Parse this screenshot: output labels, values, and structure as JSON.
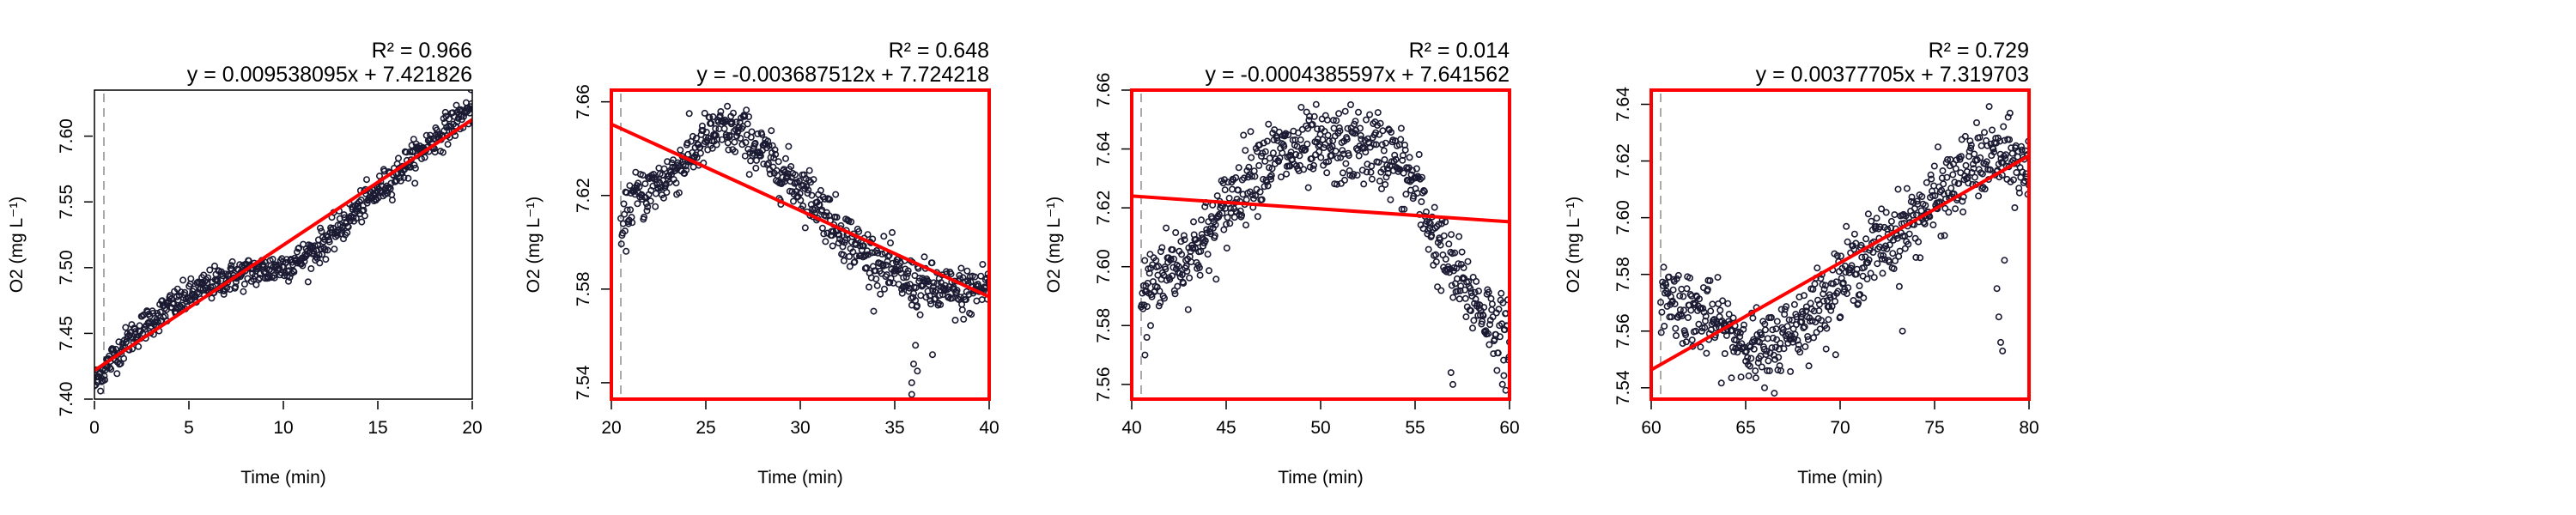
{
  "colors": {
    "point_stroke": "#1a1a33",
    "fit_line": "#ff0000",
    "highlight_border": "#ff0000",
    "plain_border": "#000000",
    "guide_line": "#aaaaaa"
  },
  "chart_data": [
    {
      "type": "scatter",
      "title": "",
      "xlabel": "Time (min)",
      "ylabel": "O2 (mg L⁻¹)",
      "xlim": [
        0,
        20
      ],
      "ylim": [
        7.4,
        7.635
      ],
      "xticks": [
        "0",
        "5",
        "10",
        "15",
        "20"
      ],
      "yticks": [
        "7.40",
        "7.45",
        "7.50",
        "7.55",
        "7.60"
      ],
      "r2_label": "R² = 0.966",
      "equation": "y = 0.009538095x + 7.421826",
      "slope": 0.009538095,
      "intercept": 7.421826,
      "guide_x": 0.5,
      "highlighted": false,
      "trend_points": [
        [
          0,
          7.412
        ],
        [
          1,
          7.432
        ],
        [
          2,
          7.448
        ],
        [
          3,
          7.46
        ],
        [
          4,
          7.47
        ],
        [
          5,
          7.478
        ],
        [
          6,
          7.486
        ],
        [
          7,
          7.492
        ],
        [
          8,
          7.496
        ],
        [
          9,
          7.498
        ],
        [
          10,
          7.501
        ],
        [
          11,
          7.507
        ],
        [
          12,
          7.517
        ],
        [
          13,
          7.53
        ],
        [
          14,
          7.545
        ],
        [
          15,
          7.558
        ],
        [
          16,
          7.572
        ],
        [
          17,
          7.585
        ],
        [
          18,
          7.598
        ],
        [
          19,
          7.61
        ],
        [
          20,
          7.622
        ]
      ],
      "spread": 0.006,
      "spikes": []
    },
    {
      "type": "scatter",
      "title": "",
      "xlabel": "Time (min)",
      "ylabel": "O2 (mg L⁻¹)",
      "xlim": [
        20,
        40
      ],
      "ylim": [
        7.533,
        7.665
      ],
      "xticks": [
        "20",
        "25",
        "30",
        "35",
        "40"
      ],
      "yticks": [
        "7.54",
        "7.58",
        "7.62",
        "7.66"
      ],
      "r2_label": "R² = 0.648",
      "equation": "y = -0.003687512x + 7.724218",
      "slope": -0.003687512,
      "intercept": 7.724218,
      "guide_x": 20.5,
      "highlighted": true,
      "trend_points": [
        [
          20.5,
          7.6
        ],
        [
          21,
          7.618
        ],
        [
          22,
          7.622
        ],
        [
          23,
          7.628
        ],
        [
          24,
          7.636
        ],
        [
          25,
          7.644
        ],
        [
          26,
          7.648
        ],
        [
          27,
          7.646
        ],
        [
          28,
          7.638
        ],
        [
          29,
          7.63
        ],
        [
          30,
          7.624
        ],
        [
          31,
          7.616
        ],
        [
          32,
          7.606
        ],
        [
          33,
          7.598
        ],
        [
          34,
          7.592
        ],
        [
          35,
          7.586
        ],
        [
          36,
          7.582
        ],
        [
          37,
          7.58
        ],
        [
          38,
          7.578
        ],
        [
          39,
          7.579
        ],
        [
          40,
          7.582
        ]
      ],
      "spread": 0.0055,
      "spikes": [
        [
          35.9,
          7.54
        ],
        [
          35.9,
          7.535
        ],
        [
          36.0,
          7.548
        ],
        [
          36.2,
          7.545
        ],
        [
          37.0,
          7.552
        ],
        [
          36.1,
          7.556
        ]
      ]
    },
    {
      "type": "scatter",
      "title": "",
      "xlabel": "Time (min)",
      "ylabel": "O2 (mg L⁻¹)",
      "xlim": [
        40,
        60
      ],
      "ylim": [
        7.555,
        7.66
      ],
      "xticks": [
        "40",
        "45",
        "50",
        "55",
        "60"
      ],
      "yticks": [
        "7.56",
        "7.58",
        "7.60",
        "7.62",
        "7.64",
        "7.66"
      ],
      "r2_label": "R² = 0.014",
      "equation": "y = -0.0004385597x + 7.641562",
      "slope": -0.0004385597,
      "intercept": 7.641562,
      "guide_x": 40.5,
      "highlighted": true,
      "trend_points": [
        [
          40.5,
          7.588
        ],
        [
          41,
          7.596
        ],
        [
          42,
          7.6
        ],
        [
          43,
          7.604
        ],
        [
          44,
          7.61
        ],
        [
          45,
          7.62
        ],
        [
          46,
          7.63
        ],
        [
          47,
          7.636
        ],
        [
          48,
          7.638
        ],
        [
          49,
          7.639
        ],
        [
          50,
          7.64
        ],
        [
          51,
          7.64
        ],
        [
          52,
          7.641
        ],
        [
          53,
          7.64
        ],
        [
          54,
          7.636
        ],
        [
          55,
          7.628
        ],
        [
          56,
          7.61
        ],
        [
          57,
          7.598
        ],
        [
          58,
          7.59
        ],
        [
          59,
          7.582
        ],
        [
          60,
          7.574
        ]
      ],
      "spread": 0.0065,
      "spikes": [
        [
          40.7,
          7.57
        ],
        [
          40.8,
          7.576
        ],
        [
          56.9,
          7.564
        ],
        [
          57.0,
          7.56
        ],
        [
          59.7,
          7.563
        ],
        [
          59.8,
          7.558
        ],
        [
          41.0,
          7.58
        ]
      ]
    },
    {
      "type": "scatter",
      "title": "",
      "xlabel": "Time (min)",
      "ylabel": "O2 (mg L⁻¹)",
      "xlim": [
        60,
        80
      ],
      "ylim": [
        7.536,
        7.645
      ],
      "xticks": [
        "60",
        "65",
        "70",
        "75",
        "80"
      ],
      "yticks": [
        "7.54",
        "7.56",
        "7.58",
        "7.60",
        "7.62",
        "7.64"
      ],
      "r2_label": "R² = 0.729",
      "equation": "y = 0.00377705x + 7.319703",
      "slope": 0.00377705,
      "intercept": 7.319703,
      "guide_x": 60.5,
      "highlighted": true,
      "trend_points": [
        [
          60.5,
          7.574
        ],
        [
          61,
          7.572
        ],
        [
          62,
          7.568
        ],
        [
          63,
          7.564
        ],
        [
          64,
          7.56
        ],
        [
          65,
          7.556
        ],
        [
          66,
          7.552
        ],
        [
          67,
          7.558
        ],
        [
          68,
          7.564
        ],
        [
          69,
          7.57
        ],
        [
          70,
          7.578
        ],
        [
          71,
          7.584
        ],
        [
          72,
          7.59
        ],
        [
          73,
          7.594
        ],
        [
          74,
          7.6
        ],
        [
          75,
          7.606
        ],
        [
          76,
          7.612
        ],
        [
          77,
          7.618
        ],
        [
          78,
          7.622
        ],
        [
          79,
          7.62
        ],
        [
          80,
          7.616
        ]
      ],
      "spread": 0.0065,
      "spikes": [
        [
          78.3,
          7.575
        ],
        [
          78.4,
          7.565
        ],
        [
          78.5,
          7.556
        ],
        [
          78.6,
          7.553
        ],
        [
          66.0,
          7.54
        ],
        [
          73.3,
          7.56
        ],
        [
          78.7,
          7.585
        ]
      ]
    }
  ]
}
